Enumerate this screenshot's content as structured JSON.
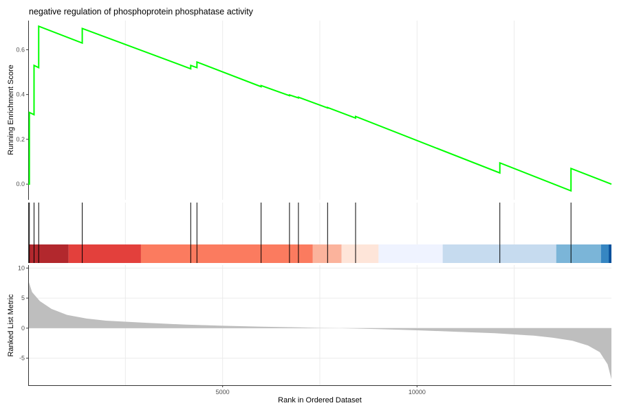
{
  "chart_data": {
    "type": "line",
    "title": "negative regulation of phosphoprotein phosphatase activity",
    "xlabel": "Rank in Ordered Dataset",
    "x_ticks": [
      5000,
      10000
    ],
    "x_range": [
      0,
      15000
    ],
    "colors": {
      "running_score": "#00ff00",
      "hit_line": "#000000",
      "metric_area": "#bebebe",
      "grid": "#ebebeb"
    },
    "running_score": {
      "ylabel": "Running Enrichment Score",
      "ylim": [
        -0.07,
        0.73
      ],
      "y_ticks": [
        0.0,
        0.2,
        0.4,
        0.6
      ],
      "points": [
        [
          0,
          0.0
        ],
        [
          30,
          0.0
        ],
        [
          30,
          0.32
        ],
        [
          150,
          0.31
        ],
        [
          150,
          0.53
        ],
        [
          270,
          0.52
        ],
        [
          270,
          0.705
        ],
        [
          1390,
          0.63
        ],
        [
          1390,
          0.695
        ],
        [
          4180,
          0.515
        ],
        [
          4180,
          0.53
        ],
        [
          4340,
          0.52
        ],
        [
          4340,
          0.545
        ],
        [
          5990,
          0.435
        ],
        [
          5990,
          0.44
        ],
        [
          6720,
          0.395
        ],
        [
          6720,
          0.398
        ],
        [
          6950,
          0.385
        ],
        [
          6950,
          0.388
        ],
        [
          7700,
          0.34
        ],
        [
          7700,
          0.342
        ],
        [
          8420,
          0.295
        ],
        [
          8420,
          0.302
        ],
        [
          12130,
          0.05
        ],
        [
          12130,
          0.095
        ],
        [
          13960,
          -0.03
        ],
        [
          13960,
          0.07
        ],
        [
          15000,
          0.0
        ]
      ]
    },
    "hits": [
      30,
      150,
      270,
      1390,
      4180,
      4340,
      5990,
      6720,
      6950,
      7700,
      8420,
      12130,
      13960
    ],
    "color_bar": [
      {
        "from": 0,
        "to": 1040,
        "color": "#b2282d"
      },
      {
        "from": 1040,
        "to": 2900,
        "color": "#e3403c"
      },
      {
        "from": 2900,
        "to": 7320,
        "color": "#fb7b5f"
      },
      {
        "from": 7320,
        "to": 8060,
        "color": "#fbb39c"
      },
      {
        "from": 8060,
        "to": 9010,
        "color": "#fee5d9"
      },
      {
        "from": 9010,
        "to": 10660,
        "color": "#eff3ff"
      },
      {
        "from": 10660,
        "to": 13580,
        "color": "#c6dbef"
      },
      {
        "from": 13580,
        "to": 14730,
        "color": "#7bb5d8"
      },
      {
        "from": 14730,
        "to": 14930,
        "color": "#3686c2"
      },
      {
        "from": 14930,
        "to": 15000,
        "color": "#08519c"
      }
    ],
    "ranked_metric": {
      "ylabel": "Ranked List Metric",
      "ylim": [
        -9.5,
        10.5
      ],
      "y_ticks": [
        -5,
        0,
        5,
        10
      ],
      "points": [
        [
          0,
          8.0
        ],
        [
          100,
          6.0
        ],
        [
          300,
          4.5
        ],
        [
          600,
          3.2
        ],
        [
          1000,
          2.2
        ],
        [
          1500,
          1.6
        ],
        [
          2000,
          1.25
        ],
        [
          3000,
          0.9
        ],
        [
          4000,
          0.6
        ],
        [
          5000,
          0.4
        ],
        [
          6000,
          0.25
        ],
        [
          7000,
          0.13
        ],
        [
          7500,
          0.05
        ],
        [
          8000,
          0.0
        ],
        [
          9000,
          -0.15
        ],
        [
          10000,
          -0.35
        ],
        [
          11000,
          -0.6
        ],
        [
          12000,
          -0.85
        ],
        [
          13000,
          -1.25
        ],
        [
          13500,
          -1.6
        ],
        [
          14000,
          -2.1
        ],
        [
          14400,
          -2.9
        ],
        [
          14700,
          -4.0
        ],
        [
          14900,
          -6.0
        ],
        [
          15000,
          -8.5
        ]
      ]
    }
  }
}
